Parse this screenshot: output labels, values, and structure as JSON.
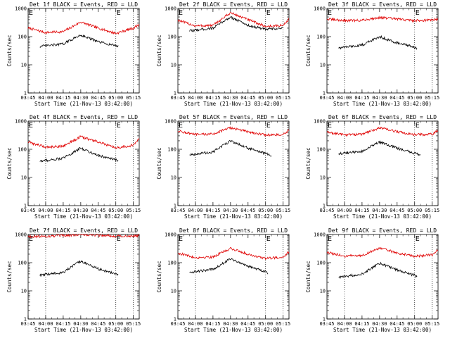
{
  "chart_data": [
    {
      "type": "line",
      "title": "Det 1f BLACK = Events, RED = LLD",
      "xlabel": "Start Time (21-Nov-13 03:42:00)",
      "ylabel": "Counts/sec",
      "yscale": "log",
      "ylim": [
        1,
        1000
      ],
      "xlim": [
        "03:45",
        "05:20"
      ],
      "xticks": [
        "03:45",
        "04:00",
        "04:15",
        "04:30",
        "04:45",
        "05:00",
        "05:15"
      ],
      "yticks": [
        "1",
        "10",
        "100",
        "1000"
      ],
      "vlines": [
        "04:00",
        "05:00",
        "05:15"
      ],
      "markers": [
        {
          "x": "03:45",
          "label": "E"
        },
        {
          "x": "05:00",
          "label": "E"
        }
      ],
      "series": [
        {
          "color": "#e00000",
          "x": [
            "03:45",
            "04:00",
            "04:15",
            "04:30",
            "04:45",
            "05:00",
            "05:15",
            "05:20"
          ],
          "y": [
            200,
            140,
            150,
            330,
            200,
            130,
            200,
            270
          ]
        },
        {
          "color": "#000000",
          "x": [
            "03:55",
            "04:00",
            "04:15",
            "04:30",
            "04:45",
            "05:00",
            "05:02"
          ],
          "y": [
            45,
            47,
            55,
            115,
            65,
            48,
            45
          ]
        }
      ]
    },
    {
      "type": "line",
      "title": "Det 2f BLACK = Events, RED = LLD",
      "xlabel": "Start Time (21-Nov-13 03:42:00)",
      "ylabel": "Counts/sec",
      "yscale": "log",
      "ylim": [
        1,
        1000
      ],
      "xlim": [
        "03:45",
        "05:20"
      ],
      "xticks": [
        "03:45",
        "04:00",
        "04:15",
        "04:30",
        "04:45",
        "05:00",
        "05:15"
      ],
      "yticks": [
        "1",
        "10",
        "100",
        "1000"
      ],
      "vlines": [
        "04:00",
        "05:00",
        "05:15"
      ],
      "markers": [
        {
          "x": "03:45",
          "label": "E"
        },
        {
          "x": "05:00",
          "label": "E"
        }
      ],
      "series": [
        {
          "color": "#e00000",
          "x": [
            "03:45",
            "04:00",
            "04:15",
            "04:30",
            "04:45",
            "05:00",
            "05:15",
            "05:20"
          ],
          "y": [
            380,
            240,
            250,
            700,
            400,
            230,
            250,
            420
          ]
        },
        {
          "color": "#000000",
          "x": [
            "03:55",
            "04:00",
            "04:15",
            "04:30",
            "04:45",
            "05:00",
            "05:15"
          ],
          "y": [
            160,
            170,
            200,
            500,
            250,
            180,
            200
          ]
        }
      ]
    },
    {
      "type": "line",
      "title": "Det 3f BLACK = Events, RED = LLD",
      "xlabel": "Start Time (21-Nov-13 03:42:00)",
      "ylabel": "Counts/sec",
      "yscale": "log",
      "ylim": [
        1,
        1000
      ],
      "xlim": [
        "03:45",
        "05:20"
      ],
      "xticks": [
        "03:45",
        "04:00",
        "04:15",
        "04:30",
        "04:45",
        "05:00",
        "05:15"
      ],
      "yticks": [
        "1",
        "10",
        "100",
        "1000"
      ],
      "vlines": [
        "04:00",
        "05:00",
        "05:15"
      ],
      "markers": [
        {
          "x": "03:45",
          "label": "E"
        },
        {
          "x": "05:00",
          "label": "E"
        }
      ],
      "series": [
        {
          "color": "#e00000",
          "x": [
            "03:45",
            "04:00",
            "04:15",
            "04:30",
            "04:45",
            "05:00",
            "05:15",
            "05:20"
          ],
          "y": [
            420,
            370,
            380,
            480,
            420,
            370,
            390,
            430
          ]
        },
        {
          "color": "#000000",
          "x": [
            "03:55",
            "04:00",
            "04:15",
            "04:30",
            "04:45",
            "05:00",
            "05:02"
          ],
          "y": [
            40,
            42,
            50,
            100,
            60,
            42,
            38
          ]
        }
      ]
    },
    {
      "type": "line",
      "title": "Det 4f BLACK = Events, RED = LLD",
      "xlabel": "Start Time (21-Nov-13 03:42:00)",
      "ylabel": "Counts/sec",
      "yscale": "log",
      "ylim": [
        1,
        1000
      ],
      "xlim": [
        "03:45",
        "05:20"
      ],
      "xticks": [
        "03:45",
        "04:00",
        "04:15",
        "04:30",
        "04:45",
        "05:00",
        "05:15"
      ],
      "yticks": [
        "1",
        "10",
        "100",
        "1000"
      ],
      "vlines": [
        "04:00",
        "05:00",
        "05:15"
      ],
      "markers": [
        {
          "x": "03:45",
          "label": "E"
        },
        {
          "x": "05:00",
          "label": "E"
        }
      ],
      "series": [
        {
          "color": "#e00000",
          "x": [
            "03:45",
            "04:00",
            "04:15",
            "04:30",
            "04:45",
            "05:00",
            "05:15",
            "05:20"
          ],
          "y": [
            180,
            120,
            130,
            280,
            180,
            110,
            140,
            230
          ]
        },
        {
          "color": "#000000",
          "x": [
            "03:55",
            "04:00",
            "04:15",
            "04:30",
            "04:45",
            "05:00",
            "05:02"
          ],
          "y": [
            38,
            40,
            48,
            110,
            60,
            42,
            38
          ]
        }
      ]
    },
    {
      "type": "line",
      "title": "Det 5f BLACK = Events, RED = LLD",
      "xlabel": "Start Time (21-Nov-13 03:42:00)",
      "ylabel": "Counts/sec",
      "yscale": "log",
      "ylim": [
        1,
        1000
      ],
      "xlim": [
        "03:45",
        "05:20"
      ],
      "xticks": [
        "03:45",
        "04:00",
        "04:15",
        "04:30",
        "04:45",
        "05:00",
        "05:15"
      ],
      "yticks": [
        "1",
        "10",
        "100",
        "1000"
      ],
      "vlines": [
        "04:00",
        "05:00",
        "05:15"
      ],
      "markers": [
        {
          "x": "03:45",
          "label": "E"
        },
        {
          "x": "05:00",
          "label": "E"
        }
      ],
      "series": [
        {
          "color": "#e00000",
          "x": [
            "03:45",
            "04:00",
            "04:15",
            "04:30",
            "04:45",
            "05:00",
            "05:15",
            "05:20"
          ],
          "y": [
            450,
            330,
            350,
            580,
            420,
            320,
            330,
            460
          ]
        },
        {
          "color": "#000000",
          "x": [
            "03:55",
            "04:00",
            "04:15",
            "04:30",
            "04:45",
            "05:00",
            "05:05"
          ],
          "y": [
            65,
            68,
            80,
            200,
            110,
            70,
            60
          ]
        }
      ]
    },
    {
      "type": "line",
      "title": "Det 6f BLACK = Events, RED = LLD",
      "xlabel": "Start Time (21-Nov-13 03:42:00)",
      "ylabel": "Counts/sec",
      "yscale": "log",
      "ylim": [
        1,
        1000
      ],
      "xlim": [
        "03:45",
        "05:20"
      ],
      "xticks": [
        "03:45",
        "04:00",
        "04:15",
        "04:30",
        "04:45",
        "05:00",
        "05:15"
      ],
      "yticks": [
        "1",
        "10",
        "100",
        "1000"
      ],
      "vlines": [
        "04:00",
        "05:00",
        "05:15"
      ],
      "markers": [
        {
          "x": "03:45",
          "label": "E"
        },
        {
          "x": "05:00",
          "label": "E"
        }
      ],
      "series": [
        {
          "color": "#e00000",
          "x": [
            "03:45",
            "04:00",
            "04:15",
            "04:30",
            "04:45",
            "05:00",
            "05:15",
            "05:20"
          ],
          "y": [
            400,
            330,
            340,
            580,
            420,
            330,
            340,
            460
          ]
        },
        {
          "color": "#000000",
          "x": [
            "03:55",
            "04:00",
            "04:15",
            "04:30",
            "04:45",
            "05:00",
            "05:05"
          ],
          "y": [
            70,
            72,
            85,
            180,
            110,
            72,
            65
          ]
        }
      ]
    },
    {
      "type": "line",
      "title": "Det 7f BLACK = Events, RED = LLD",
      "xlabel": "Start Time (21-Nov-13 03:42:00)",
      "ylabel": "Counts/sec",
      "yscale": "log",
      "ylim": [
        1,
        1000
      ],
      "xlim": [
        "03:45",
        "05:20"
      ],
      "xticks": [
        "03:45",
        "04:00",
        "04:15",
        "04:30",
        "04:45",
        "05:00",
        "05:15"
      ],
      "yticks": [
        "1",
        "10",
        "100",
        "1000"
      ],
      "vlines": [
        "04:00",
        "05:00",
        "05:15"
      ],
      "markers": [
        {
          "x": "03:45",
          "label": "E"
        },
        {
          "x": "05:00",
          "label": "E"
        }
      ],
      "series": [
        {
          "color": "#e00000",
          "x": [
            "03:45",
            "04:00",
            "04:15",
            "04:30",
            "04:45",
            "05:00",
            "05:15",
            "05:20"
          ],
          "y": [
            850,
            860,
            900,
            1000,
            950,
            880,
            880,
            900
          ]
        },
        {
          "color": "#000000",
          "x": [
            "03:55",
            "04:00",
            "04:15",
            "04:30",
            "04:45",
            "05:00",
            "05:02"
          ],
          "y": [
            35,
            38,
            45,
            115,
            60,
            40,
            35
          ]
        }
      ]
    },
    {
      "type": "line",
      "title": "Det 8f BLACK = Events, RED = LLD",
      "xlabel": "Start Time (21-Nov-13 03:42:00)",
      "ylabel": "Counts/sec",
      "yscale": "log",
      "ylim": [
        1,
        1000
      ],
      "xlim": [
        "03:45",
        "05:20"
      ],
      "xticks": [
        "03:45",
        "04:00",
        "04:15",
        "04:30",
        "04:45",
        "05:00",
        "05:15"
      ],
      "yticks": [
        "1",
        "10",
        "100",
        "1000"
      ],
      "vlines": [
        "04:00",
        "05:00",
        "05:15"
      ],
      "markers": [
        {
          "x": "03:45",
          "label": "E"
        },
        {
          "x": "05:00",
          "label": "E"
        }
      ],
      "series": [
        {
          "color": "#e00000",
          "x": [
            "03:45",
            "04:00",
            "04:15",
            "04:30",
            "04:45",
            "05:00",
            "05:15",
            "05:20"
          ],
          "y": [
            220,
            150,
            160,
            320,
            200,
            140,
            160,
            240
          ]
        },
        {
          "color": "#000000",
          "x": [
            "03:55",
            "04:00",
            "04:15",
            "04:30",
            "04:45",
            "05:00",
            "05:02"
          ],
          "y": [
            45,
            48,
            58,
            140,
            75,
            48,
            42
          ]
        }
      ]
    },
    {
      "type": "line",
      "title": "Det 9f BLACK = Events, RED = LLD",
      "xlabel": "Start Time (21-Nov-13 03:42:00)",
      "ylabel": "Counts/sec",
      "yscale": "log",
      "ylim": [
        1,
        1000
      ],
      "xlim": [
        "03:45",
        "05:20"
      ],
      "xticks": [
        "03:45",
        "04:00",
        "04:15",
        "04:30",
        "04:45",
        "05:00",
        "05:15"
      ],
      "yticks": [
        "1",
        "10",
        "100",
        "1000"
      ],
      "vlines": [
        "04:00",
        "05:00",
        "05:15"
      ],
      "markers": [
        {
          "x": "03:45",
          "label": "E"
        },
        {
          "x": "05:00",
          "label": "E"
        }
      ],
      "series": [
        {
          "color": "#e00000",
          "x": [
            "03:45",
            "04:00",
            "04:15",
            "04:30",
            "04:45",
            "05:00",
            "05:15",
            "05:20"
          ],
          "y": [
            230,
            170,
            180,
            330,
            220,
            170,
            190,
            280
          ]
        },
        {
          "color": "#000000",
          "x": [
            "03:55",
            "04:00",
            "04:15",
            "04:30",
            "04:45",
            "05:00",
            "05:02"
          ],
          "y": [
            30,
            32,
            40,
            95,
            55,
            35,
            32
          ]
        }
      ]
    }
  ]
}
